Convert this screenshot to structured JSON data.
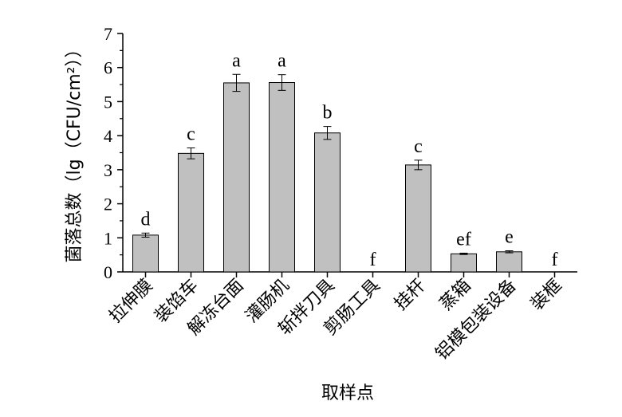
{
  "chart_data": {
    "type": "bar",
    "xlabel": "取样点",
    "ylabel": "菌落总数（lg（CFU/cm²））",
    "ylim": [
      0,
      7
    ],
    "yticks": [
      0,
      1,
      2,
      3,
      4,
      5,
      6,
      7
    ],
    "categories": [
      "拉伸膜",
      "装馅车",
      "解冻台面",
      "灌肠机",
      "斩拌刀具",
      "剪肠工具",
      "挂杆",
      "蒸箱",
      "铝模包装设备",
      "装框"
    ],
    "values": [
      1.08,
      3.48,
      5.55,
      5.56,
      4.08,
      0,
      3.14,
      0.53,
      0.59,
      0
    ],
    "errors": [
      0.06,
      0.16,
      0.25,
      0.23,
      0.19,
      0,
      0.14,
      0.02,
      0.03,
      0
    ],
    "significance": [
      "d",
      "c",
      "a",
      "a",
      "b",
      "f",
      "c",
      "ef",
      "e",
      "f"
    ],
    "bar_color": "#c0c0c0",
    "grid": false,
    "legend": "none"
  }
}
